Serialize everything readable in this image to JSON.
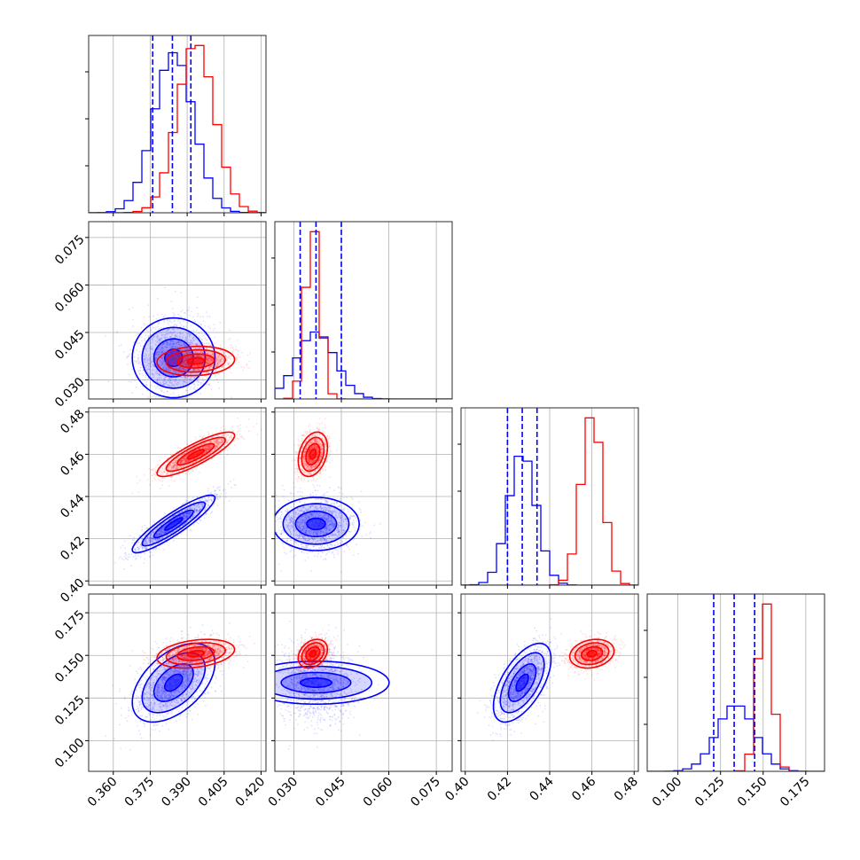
{
  "chart_data": {
    "type": "corner",
    "grid": true,
    "axes": [
      {
        "lim": [
          0.35,
          0.422
        ],
        "ticks": [
          "0.360",
          "0.375",
          "0.390",
          "0.405",
          "0.420"
        ]
      },
      {
        "lim": [
          0.024,
          0.08
        ],
        "ticks": [
          "0.030",
          "0.045",
          "0.060",
          "0.075"
        ]
      },
      {
        "lim": [
          0.398,
          0.482
        ],
        "ticks": [
          "0.40",
          "0.42",
          "0.44",
          "0.46",
          "0.48"
        ]
      },
      {
        "lim": [
          0.082,
          0.186
        ],
        "ticks": [
          "0.100",
          "0.125",
          "0.150",
          "0.175"
        ]
      }
    ],
    "series": [
      {
        "color": "#0000ff",
        "mean": [
          0.3845,
          0.037,
          0.427,
          0.134
        ],
        "sd": [
          0.008,
          0.006,
          0.0065,
          0.011
        ],
        "quantiles": [
          [
            0.376,
            0.384,
            0.3915
          ],
          [
            0.032,
            0.037,
            0.045
          ],
          [
            0.42,
            0.427,
            0.434
          ],
          [
            0.121,
            0.133,
            0.145
          ]
        ],
        "corr": {
          "0-1": 0.0,
          "0-2": 0.9,
          "0-3": 0.5,
          "1-2": 0.0,
          "1-3": 0.0,
          "2-3": 0.6
        }
      },
      {
        "color": "#ff0000",
        "mean": [
          0.3935,
          0.036,
          0.46,
          0.151
        ],
        "sd": [
          0.0075,
          0.0022,
          0.005,
          0.004
        ],
        "corr": {
          "0-1": 0.1,
          "0-2": 0.85,
          "0-3": 0.3,
          "1-2": 0.3,
          "1-3": 0.3,
          "2-3": 0.2
        }
      }
    ]
  }
}
